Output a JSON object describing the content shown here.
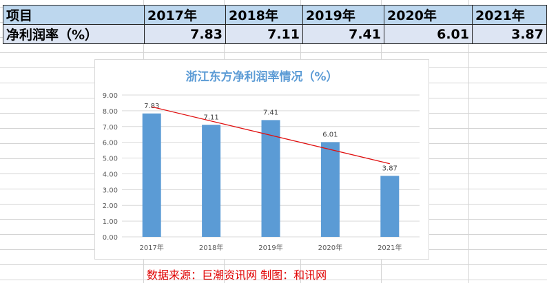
{
  "table": {
    "headers": [
      "项目",
      "2017年",
      "2018年",
      "2019年",
      "2020年",
      "2021年"
    ],
    "rows": [
      [
        "净利润率（%）",
        "7.83",
        "7.11",
        "7.41",
        "6.01",
        "3.87"
      ]
    ]
  },
  "chart_data": {
    "type": "bar",
    "title": "浙江东方净利润率情况（%）",
    "categories": [
      "2017年",
      "2018年",
      "2019年",
      "2020年",
      "2021年"
    ],
    "values": [
      7.83,
      7.11,
      7.41,
      6.01,
      3.87
    ],
    "data_labels": [
      "7.83",
      "7.11",
      "7.41",
      "6.01",
      "3.87"
    ],
    "yticks": [
      "0.00",
      "1.00",
      "2.00",
      "3.00",
      "4.00",
      "5.00",
      "6.00",
      "7.00",
      "8.00",
      "9.00"
    ],
    "ylim": [
      0,
      9
    ],
    "grid": true,
    "trendline": "linear",
    "colors": {
      "bar": "#5b9bd5",
      "trend": "#e01010",
      "title": "#5b9bd5"
    }
  },
  "source": "数据来源：巨潮资讯网  制图：和讯网"
}
